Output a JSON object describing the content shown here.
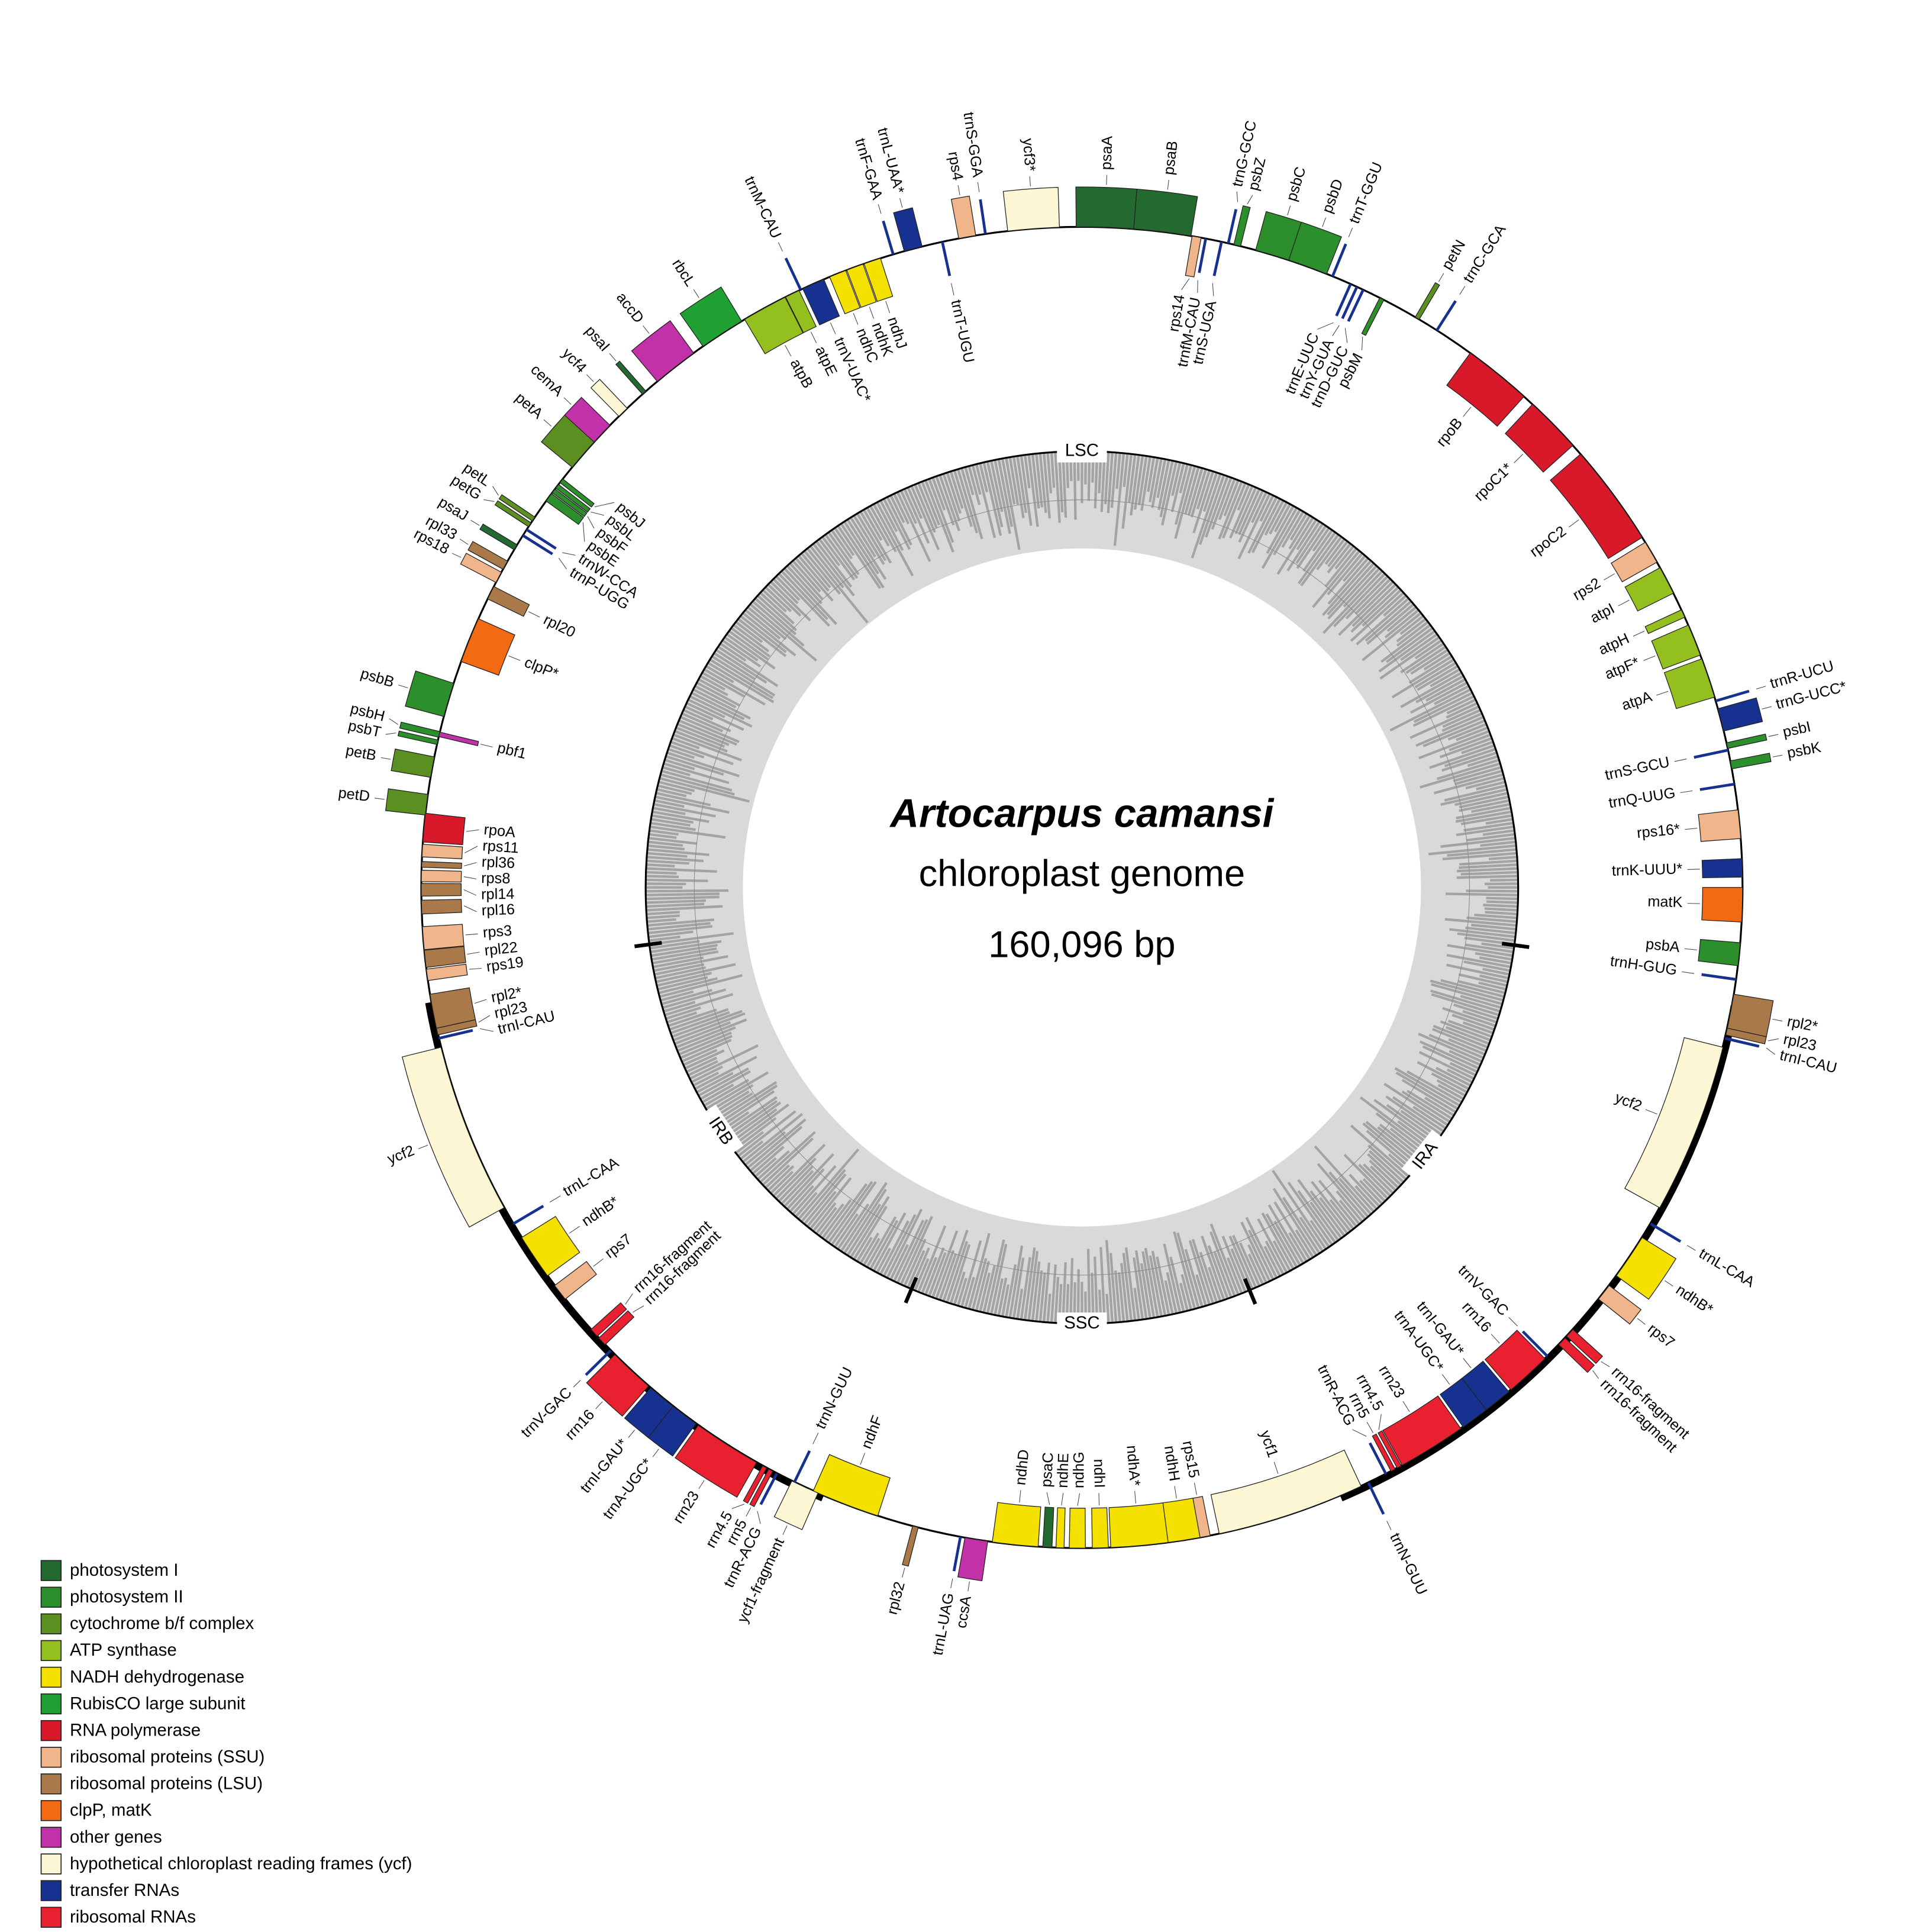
{
  "title": {
    "species": "Artocarpus camansi",
    "subtitle": "chloroplast genome",
    "length": "160,096 bp"
  },
  "regions": [
    "LSC",
    "IRA",
    "SSC",
    "IRB"
  ],
  "genes": [
    "psaA",
    "psaB",
    "rps14",
    "trnfM-CAU",
    "trnS-UGA",
    "trnG-GCC",
    "psbZ",
    "psbC",
    "psbD",
    "trnT-GGU",
    "trnE-UUC",
    "trnY-GUA",
    "trnD-GUC",
    "psbM",
    "petN",
    "trnC-GCA",
    "rpoB",
    "rpoC1*",
    "rpoC2",
    "rps2",
    "atpI",
    "atpH",
    "atpF*",
    "atpA",
    "trnR-UCU",
    "trnG-UCC*",
    "psbI",
    "trnS-GCU",
    "psbK",
    "trnQ-UUG",
    "rps16*",
    "trnK-UUU*",
    "matK",
    "psbA",
    "trnH-GUG",
    "rpl2*",
    "rpl23",
    "trnI-CAU",
    "ycf2",
    "trnL-CAA",
    "ndhB*",
    "rps7",
    "rrn16-fragment",
    "rrn16-fragment",
    "trnV-GAC",
    "rrn16",
    "trnI-GAU*",
    "trnA-UGC*",
    "rrn23",
    "rrn4.5",
    "rrn5",
    "trnR-ACG",
    "trnN-GUU",
    "ycf1",
    "rps15",
    "ndhH",
    "ndhA*",
    "ndhI",
    "ndhG",
    "ndhE",
    "psaC",
    "ndhD",
    "ccsA",
    "trnL-UAG",
    "rpl32",
    "ndhF",
    "ycf1-fragment",
    "trnN-GUU",
    "trnR-ACG",
    "rrn5",
    "rrn4.5",
    "rrn23",
    "trnA-UGC*",
    "trnI-GAU*",
    "rrn16",
    "trnV-GAC",
    "rrn16-fragment",
    "rrn16-fragment",
    "rps7",
    "ndhB*",
    "trnL-CAA",
    "ycf2",
    "trnI-CAU",
    "rpl23",
    "rpl2*",
    "rps19",
    "rpl22",
    "rps3",
    "rpl16",
    "rpl14",
    "rps8",
    "rpl36",
    "rps11",
    "rpoA",
    "petD",
    "petB",
    "psbT",
    "psbH",
    "pbf1",
    "psbB",
    "clpP*",
    "rpl20",
    "rps18",
    "rpl33",
    "psaJ",
    "trnP-UGG",
    "trnW-CCA",
    "petG",
    "petL",
    "psbE",
    "psbF",
    "psbL",
    "psbJ",
    "petA",
    "cemA",
    "ycf4",
    "psaI",
    "accD",
    "rbcL",
    "atpB",
    "atpE",
    "trnM-CAU",
    "trnV-UAC*",
    "ndhC",
    "ndhK",
    "ndhJ",
    "trnF-GAA",
    "trnL-UAA*",
    "trnT-UGU",
    "rps4",
    "trnS-GGA",
    "ycf3*"
  ],
  "legend": [
    {
      "label": "photosystem I",
      "color": "#24692f"
    },
    {
      "label": "photosystem II",
      "color": "#2b8f2b"
    },
    {
      "label": "cytochrome b/f complex",
      "color": "#5b8f22"
    },
    {
      "label": "ATP synthase",
      "color": "#93c01f"
    },
    {
      "label": "NADH dehydrogenase",
      "color": "#f5e100"
    },
    {
      "label": "RubisCO large subunit",
      "color": "#1fa032"
    },
    {
      "label": "RNA polymerase",
      "color": "#d7192a"
    },
    {
      "label": "ribosomal proteins (SSU)",
      "color": "#f0b58a"
    },
    {
      "label": "ribosomal proteins (LSU)",
      "color": "#a9794a"
    },
    {
      "label": "clpP, matK",
      "color": "#f26b13"
    },
    {
      "label": "other genes",
      "color": "#c231a8"
    },
    {
      "label": "hypothetical chloroplast reading frames (ycf)",
      "color": "#fdf7d6"
    },
    {
      "label": "transfer RNAs",
      "color": "#16318f"
    },
    {
      "label": "ribosomal RNAs",
      "color": "#e8202f"
    }
  ]
}
